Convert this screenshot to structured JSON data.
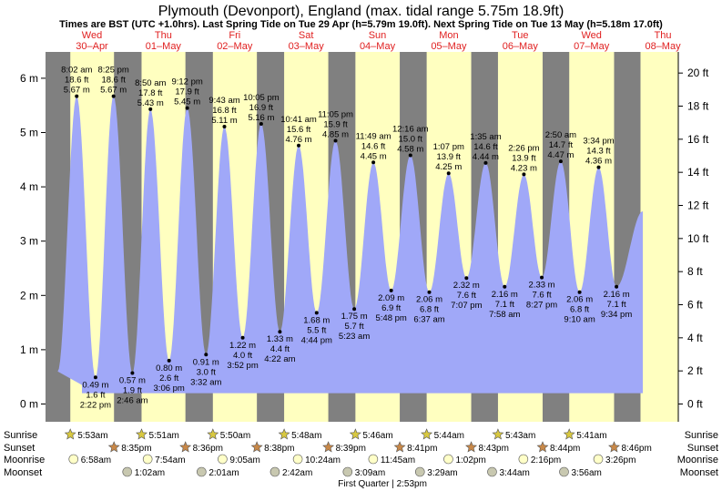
{
  "title": "Plymouth (Devonport), England (max. tidal range 5.75m 18.9ft)",
  "subtitle": "Times are BST (UTC +1.0hrs). Last Spring Tide on Tue 29 Apr (h=5.79m 19.0ft). Next Spring Tide on Tue 13 May (h=5.18m 17.0ft)",
  "chart_data": {
    "type": "area",
    "x_unit": "datetime",
    "y_unit": "m",
    "ylim": [
      -0.25,
      6.5
    ],
    "yticks_m": [
      "0 m",
      "1 m",
      "2 m",
      "3 m",
      "4 m",
      "5 m",
      "6 m"
    ],
    "yticks_ft": [
      "0 ft",
      "2 ft",
      "4 ft",
      "6 ft",
      "8 ft",
      "10 ft",
      "12 ft",
      "14 ft",
      "16 ft",
      "18 ft",
      "20 ft"
    ],
    "days": [
      {
        "name": "Wed",
        "date": "30–Apr"
      },
      {
        "name": "Thu",
        "date": "01–May"
      },
      {
        "name": "Fri",
        "date": "02–May"
      },
      {
        "name": "Sat",
        "date": "03–May"
      },
      {
        "name": "Sun",
        "date": "04–May"
      },
      {
        "name": "Mon",
        "date": "05–May"
      },
      {
        "name": "Tue",
        "date": "06–May"
      },
      {
        "name": "Wed",
        "date": "07–May"
      },
      {
        "name": "Thu",
        "date": "08–May"
      }
    ],
    "tides": [
      {
        "type": "high",
        "datetime": "2025-04-30T08:02",
        "time": "8:02 am",
        "m": 5.67,
        "ft": "18.6 ft",
        "m_label": "5.67 m"
      },
      {
        "type": "low",
        "datetime": "2025-04-30T14:22",
        "time": "2:22 pm",
        "m": 0.49,
        "ft": "1.6 ft",
        "m_label": "0.49 m"
      },
      {
        "type": "high",
        "datetime": "2025-04-30T20:25",
        "time": "8:25 pm",
        "m": 5.67,
        "ft": "18.6 ft",
        "m_label": "5.67 m"
      },
      {
        "type": "low",
        "datetime": "2025-05-01T02:46",
        "time": "2:46 am",
        "m": 0.57,
        "ft": "1.9 ft",
        "m_label": "0.57 m"
      },
      {
        "type": "high",
        "datetime": "2025-05-01T08:50",
        "time": "8:50 am",
        "m": 5.43,
        "ft": "17.8 ft",
        "m_label": "5.43 m"
      },
      {
        "type": "low",
        "datetime": "2025-05-01T15:06",
        "time": "3:06 pm",
        "m": 0.8,
        "ft": "2.6 ft",
        "m_label": "0.80 m"
      },
      {
        "type": "high",
        "datetime": "2025-05-01T21:12",
        "time": "9:12 pm",
        "m": 5.45,
        "ft": "17.9 ft",
        "m_label": "5.45 m"
      },
      {
        "type": "low",
        "datetime": "2025-05-02T03:32",
        "time": "3:32 am",
        "m": 0.91,
        "ft": "3.0 ft",
        "m_label": "0.91 m"
      },
      {
        "type": "high",
        "datetime": "2025-05-02T09:43",
        "time": "9:43 am",
        "m": 5.11,
        "ft": "16.8 ft",
        "m_label": "5.11 m"
      },
      {
        "type": "low",
        "datetime": "2025-05-02T15:52",
        "time": "3:52 pm",
        "m": 1.22,
        "ft": "4.0 ft",
        "m_label": "1.22 m"
      },
      {
        "type": "high",
        "datetime": "2025-05-02T22:05",
        "time": "10:05 pm",
        "m": 5.16,
        "ft": "16.9 ft",
        "m_label": "5.16 m"
      },
      {
        "type": "low",
        "datetime": "2025-05-03T04:22",
        "time": "4:22 am",
        "m": 1.33,
        "ft": "4.4 ft",
        "m_label": "1.33 m"
      },
      {
        "type": "high",
        "datetime": "2025-05-03T10:41",
        "time": "10:41 am",
        "m": 4.76,
        "ft": "15.6 ft",
        "m_label": "4.76 m"
      },
      {
        "type": "low",
        "datetime": "2025-05-03T16:44",
        "time": "4:44 pm",
        "m": 1.68,
        "ft": "5.5 ft",
        "m_label": "1.68 m"
      },
      {
        "type": "high",
        "datetime": "2025-05-03T23:05",
        "time": "11:05 pm",
        "m": 4.85,
        "ft": "15.9 ft",
        "m_label": "4.85 m"
      },
      {
        "type": "low",
        "datetime": "2025-05-04T05:23",
        "time": "5:23 am",
        "m": 1.75,
        "ft": "5.7 ft",
        "m_label": "1.75 m"
      },
      {
        "type": "high",
        "datetime": "2025-05-04T11:49",
        "time": "11:49 am",
        "m": 4.45,
        "ft": "14.6 ft",
        "m_label": "4.45 m"
      },
      {
        "type": "low",
        "datetime": "2025-05-04T17:48",
        "time": "5:48 pm",
        "m": 2.09,
        "ft": "6.9 ft",
        "m_label": "2.09 m"
      },
      {
        "type": "high",
        "datetime": "2025-05-05T00:16",
        "time": "12:16 am",
        "m": 4.58,
        "ft": "15.0 ft",
        "m_label": "4.58 m"
      },
      {
        "type": "low",
        "datetime": "2025-05-05T06:37",
        "time": "6:37 am",
        "m": 2.06,
        "ft": "6.8 ft",
        "m_label": "2.06 m"
      },
      {
        "type": "high",
        "datetime": "2025-05-05T13:07",
        "time": "1:07 pm",
        "m": 4.25,
        "ft": "13.9 ft",
        "m_label": "4.25 m"
      },
      {
        "type": "low",
        "datetime": "2025-05-05T19:07",
        "time": "7:07 pm",
        "m": 2.32,
        "ft": "7.6 ft",
        "m_label": "2.32 m"
      },
      {
        "type": "high",
        "datetime": "2025-05-06T01:35",
        "time": "1:35 am",
        "m": 4.44,
        "ft": "14.6 ft",
        "m_label": "4.44 m"
      },
      {
        "type": "low",
        "datetime": "2025-05-06T07:58",
        "time": "7:58 am",
        "m": 2.16,
        "ft": "7.1 ft",
        "m_label": "2.16 m"
      },
      {
        "type": "high",
        "datetime": "2025-05-06T14:26",
        "time": "2:26 pm",
        "m": 4.23,
        "ft": "13.9 ft",
        "m_label": "4.23 m"
      },
      {
        "type": "low",
        "datetime": "2025-05-06T20:27",
        "time": "8:27 pm",
        "m": 2.33,
        "ft": "7.6 ft",
        "m_label": "2.33 m"
      },
      {
        "type": "high",
        "datetime": "2025-05-07T02:50",
        "time": "2:50 am",
        "m": 4.47,
        "ft": "14.7 ft",
        "m_label": "4.47 m"
      },
      {
        "type": "low",
        "datetime": "2025-05-07T09:10",
        "time": "9:10 am",
        "m": 2.06,
        "ft": "6.8 ft",
        "m_label": "2.06 m"
      },
      {
        "type": "high",
        "datetime": "2025-05-07T15:34",
        "time": "3:34 pm",
        "m": 4.36,
        "ft": "14.3 ft",
        "m_label": "4.36 m"
      },
      {
        "type": "low",
        "datetime": "2025-05-07T21:34",
        "time": "9:34 pm",
        "m": 2.16,
        "ft": "7.1 ft",
        "m_label": "2.16 m"
      }
    ],
    "sunrise": [
      {
        "datetime": "2025-04-30T05:53",
        "time": "5:53am"
      },
      {
        "datetime": "2025-05-01T05:51",
        "time": "5:51am"
      },
      {
        "datetime": "2025-05-02T05:50",
        "time": "5:50am"
      },
      {
        "datetime": "2025-05-03T05:48",
        "time": "5:48am"
      },
      {
        "datetime": "2025-05-04T05:46",
        "time": "5:46am"
      },
      {
        "datetime": "2025-05-05T05:44",
        "time": "5:44am"
      },
      {
        "datetime": "2025-05-06T05:43",
        "time": "5:43am"
      },
      {
        "datetime": "2025-05-07T05:41",
        "time": "5:41am"
      }
    ],
    "sunset": [
      {
        "datetime": "2025-04-30T20:35",
        "time": "8:35pm"
      },
      {
        "datetime": "2025-05-01T20:36",
        "time": "8:36pm"
      },
      {
        "datetime": "2025-05-02T20:38",
        "time": "8:38pm"
      },
      {
        "datetime": "2025-05-03T20:39",
        "time": "8:39pm"
      },
      {
        "datetime": "2025-05-04T20:41",
        "time": "8:41pm"
      },
      {
        "datetime": "2025-05-05T20:43",
        "time": "8:43pm"
      },
      {
        "datetime": "2025-05-06T20:44",
        "time": "8:44pm"
      },
      {
        "datetime": "2025-05-07T20:46",
        "time": "8:46pm"
      }
    ],
    "moonrise": [
      {
        "datetime": "2025-04-30T06:58",
        "time": "6:58am"
      },
      {
        "datetime": "2025-05-01T07:54",
        "time": "7:54am"
      },
      {
        "datetime": "2025-05-02T09:05",
        "time": "9:05am"
      },
      {
        "datetime": "2025-05-03T10:24",
        "time": "10:24am"
      },
      {
        "datetime": "2025-05-04T11:45",
        "time": "11:45am"
      },
      {
        "datetime": "2025-05-05T13:02",
        "time": "1:02pm"
      },
      {
        "datetime": "2025-05-06T14:16",
        "time": "2:16pm"
      },
      {
        "datetime": "2025-05-07T15:26",
        "time": "3:26pm"
      }
    ],
    "moonset": [
      {
        "datetime": "2025-05-01T01:02",
        "time": "1:02am"
      },
      {
        "datetime": "2025-05-02T02:01",
        "time": "2:01am"
      },
      {
        "datetime": "2025-05-03T02:42",
        "time": "2:42am"
      },
      {
        "datetime": "2025-05-04T03:09",
        "time": "3:09am"
      },
      {
        "datetime": "2025-05-05T03:29",
        "time": "3:29am"
      },
      {
        "datetime": "2025-05-06T03:44",
        "time": "3:44am"
      },
      {
        "datetime": "2025-05-07T03:56",
        "time": "3:56am"
      }
    ],
    "moon_phase": {
      "datetime": "2025-05-04T14:53",
      "label": "First Quarter | 2:53pm"
    }
  },
  "row_labels": {
    "sunrise": "Sunrise",
    "sunset": "Sunset",
    "moonrise": "Moonrise",
    "moonset": "Moonset"
  },
  "colors": {
    "day_band": "#ffffc0",
    "night_band": "#808080",
    "water": "#a0a8f8",
    "day_label": "#e02020",
    "sunrise_star": "#d8c840",
    "sunset_star": "#c88848",
    "moonrise_disc": "#ffffc8",
    "moonset_disc": "#c8c8b0"
  }
}
